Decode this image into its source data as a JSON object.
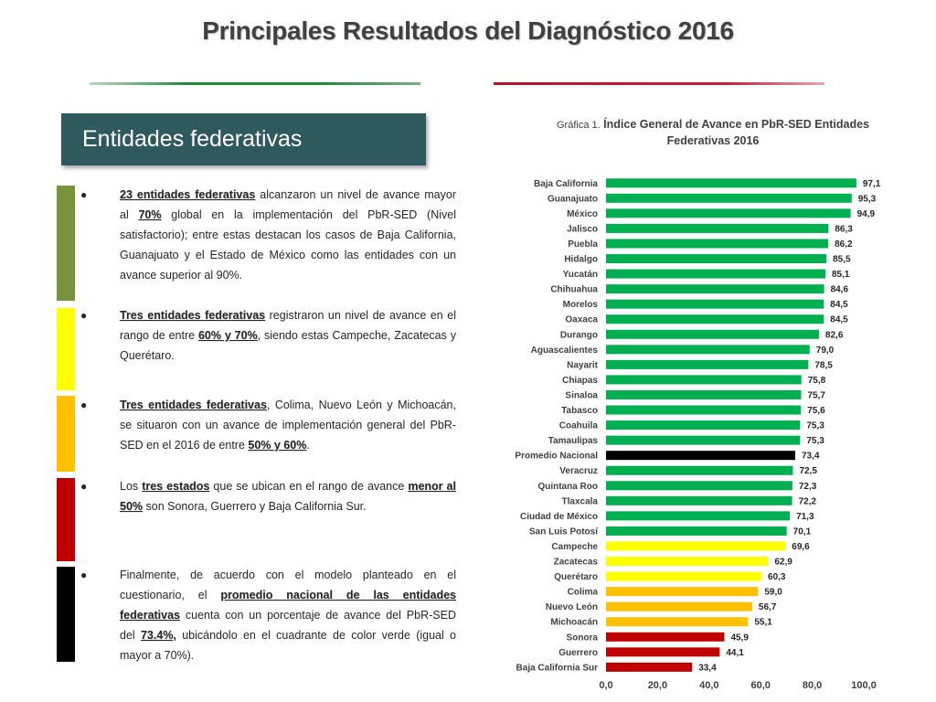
{
  "page": {
    "title": "Principales Resultados del Diagnóstico 2016",
    "section_label": "Entidades federativas"
  },
  "bullets": [
    {
      "color": "#77933c",
      "parts": [
        {
          "t": "23 entidades federativas",
          "b": true,
          "u": true
        },
        {
          "t": " alcanzaron un nivel de avance mayor al "
        },
        {
          "t": "70%",
          "b": true,
          "u": true
        },
        {
          "t": " global en la implementación del PbR-SED (Nivel satisfactorio); entre estas destacan los casos de Baja California, Guanajuato y el Estado de México como las entidades con un avance superior al 90%."
        }
      ]
    },
    {
      "color": "#ffff00",
      "parts": [
        {
          "t": "Tres entidades federativas",
          "b": true,
          "u": true
        },
        {
          "t": " registraron un nivel de avance en el rango de entre "
        },
        {
          "t": "60% y 70%",
          "b": true,
          "u": true
        },
        {
          "t": ", siendo estas Campeche, Zacatecas y Querétaro."
        }
      ]
    },
    {
      "color": "#ffc000",
      "parts": [
        {
          "t": "Tres entidades federativas",
          "b": true,
          "u": true
        },
        {
          "t": ", Colima, Nuevo León y Michoacán, se situaron con un avance de implementación general del PbR-SED en el 2016 de entre "
        },
        {
          "t": "50% y 60%",
          "b": true,
          "u": true
        },
        {
          "t": "."
        }
      ]
    },
    {
      "color": "#c00000",
      "parts": [
        {
          "t": "Los "
        },
        {
          "t": "tres estados",
          "b": true,
          "u": true
        },
        {
          "t": " que se ubican en el rango de avance "
        },
        {
          "t": "menor al 50%",
          "b": true,
          "u": true
        },
        {
          "t": " son Sonora, Guerrero y Baja California Sur."
        }
      ]
    },
    {
      "color": "#000000",
      "parts": [
        {
          "t": "Finalmente, de acuerdo con el modelo planteado en el cuestionario, el "
        },
        {
          "t": "promedio nacional de las entidades federativas",
          "b": true,
          "u": true
        },
        {
          "t": " cuenta con un porcentaje de avance del PbR-SED del "
        },
        {
          "t": "73.4%,",
          "b": true,
          "u": true
        },
        {
          "t": " ubicándolo en el cuadrante de color verde (igual o mayor a 70%)."
        }
      ]
    }
  ],
  "chart_data": {
    "type": "bar",
    "orientation": "horizontal",
    "title_prefix": "Gráfica 1.",
    "title": "Índice General de Avance en PbR-SED Entidades Federativas 2016",
    "categories": [
      "Baja California",
      "Guanajuato",
      "México",
      "Jalisco",
      "Puebla",
      "Hidalgo",
      "Yucatán",
      "Chihuahua",
      "Morelos",
      "Oaxaca",
      "Durango",
      "Aguascalientes",
      "Nayarit",
      "Chiapas",
      "Sinaloa",
      "Tabasco",
      "Coahuila",
      "Tamaulipas",
      "Promedio Nacional",
      "Veracruz",
      "Quintana Roo",
      "Tlaxcala",
      "Ciudad de México",
      "San Luis Potosí",
      "Campeche",
      "Zacatecas",
      "Querétaro",
      "Colima",
      "Nuevo León",
      "Michoacán",
      "Sonora",
      "Guerrero",
      "Baja California Sur"
    ],
    "values": [
      97.1,
      95.3,
      94.9,
      86.3,
      86.2,
      85.5,
      85.1,
      84.6,
      84.5,
      84.5,
      82.6,
      79.0,
      78.5,
      75.8,
      75.7,
      75.6,
      75.3,
      75.3,
      73.4,
      72.5,
      72.3,
      72.2,
      71.3,
      70.1,
      69.6,
      62.9,
      60.3,
      59.0,
      56.7,
      55.1,
      45.9,
      44.1,
      33.4
    ],
    "value_labels": [
      "97,1",
      "95,3",
      "94,9",
      "86,3",
      "86,2",
      "85,5",
      "85,1",
      "84,6",
      "84,5",
      "84,5",
      "82,6",
      "79,0",
      "78,5",
      "75,8",
      "75,7",
      "75,6",
      "75,3",
      "75,3",
      "73,4",
      "72,5",
      "72,3",
      "72,2",
      "71,3",
      "70,1",
      "69,6",
      "62,9",
      "60,3",
      "59,0",
      "56,7",
      "55,1",
      "45,9",
      "44,1",
      "33,4"
    ],
    "bar_colors": [
      "#00b050",
      "#00b050",
      "#00b050",
      "#00b050",
      "#00b050",
      "#00b050",
      "#00b050",
      "#00b050",
      "#00b050",
      "#00b050",
      "#00b050",
      "#00b050",
      "#00b050",
      "#00b050",
      "#00b050",
      "#00b050",
      "#00b050",
      "#00b050",
      "#000000",
      "#00b050",
      "#00b050",
      "#00b050",
      "#00b050",
      "#00b050",
      "#ffff00",
      "#ffff00",
      "#ffff00",
      "#ffc000",
      "#ffc000",
      "#ffc000",
      "#c00000",
      "#c00000",
      "#c00000"
    ],
    "xlim": [
      0,
      100
    ],
    "x_ticks": [
      0,
      20,
      40,
      60,
      80,
      100
    ],
    "x_tick_labels": [
      "0,0",
      "20,0",
      "40,0",
      "60,0",
      "80,0",
      "100,0"
    ],
    "grid": false,
    "legend": "none"
  }
}
